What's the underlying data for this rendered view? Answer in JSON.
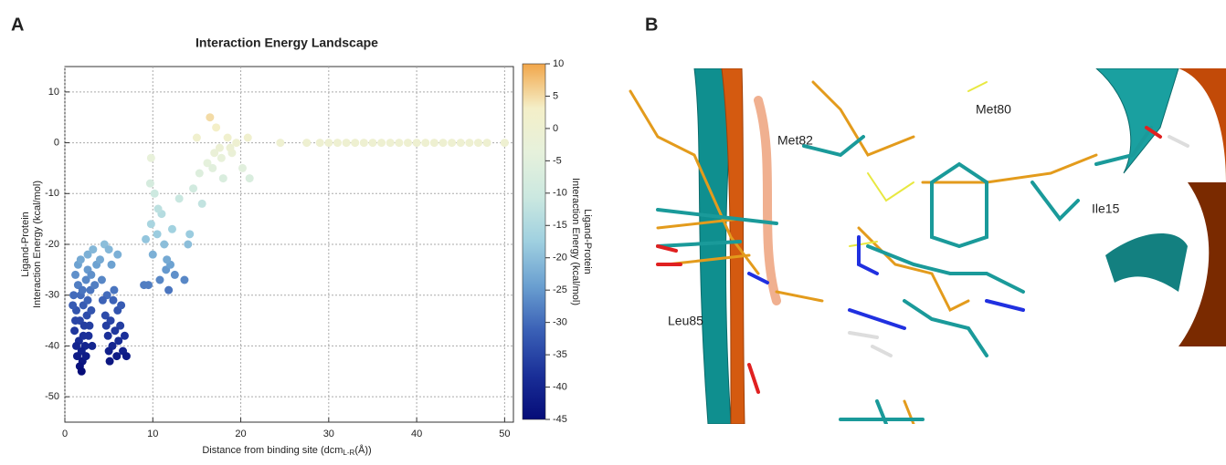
{
  "panel_labels": [
    "A",
    "B"
  ],
  "chart_data": {
    "type": "scatter",
    "title": "Interaction Energy Landscape",
    "x_label": "Distance from binding site (dcm",
    "x_label_sub": "L-R",
    "x_label_end": "(Å))",
    "y_label": [
      "Ligand-Protein",
      "Interaction Energy (kcal/mol)"
    ],
    "x": [
      1.2,
      1.5,
      1.8,
      2.1,
      1.3,
      2.5,
      1.7,
      2.2,
      1.1,
      2.7,
      1.6,
      2.3,
      1.9,
      1.4,
      2.0,
      1.7,
      1.9,
      2.6,
      1.0,
      2.9,
      1.5,
      2.4,
      3.0,
      2.8,
      1.2,
      2.1,
      1.8,
      2.6,
      0.9,
      3.1,
      2.4,
      1.3,
      2.0,
      2.6,
      3.2,
      3.6,
      3.0,
      4.0,
      3.4,
      4.2,
      4.5,
      5.0,
      5.3,
      4.8,
      5.5,
      6.0,
      4.6,
      5.2,
      6.3,
      5.7,
      4.9,
      6.1,
      5.4,
      6.6,
      5.9,
      7.0,
      5.1,
      6.4,
      4.7,
      6.8,
      5.6,
      6.0,
      4.3,
      5.0,
      9.0,
      9.5,
      10.0,
      9.8,
      10.5,
      10.2,
      9.7,
      11.0,
      11.3,
      11.5,
      12.0,
      12.5,
      11.8,
      10.8,
      12.2,
      9.2,
      13.6,
      13.0,
      14.2,
      14.0,
      9.8,
      10.6,
      11.6,
      14.6,
      15.3,
      15.0,
      16.5,
      17.2,
      17.6,
      18.5,
      19.0,
      19.5,
      20.2,
      21.0,
      16.2,
      17.8,
      18.0,
      16.8,
      20.8,
      18.8,
      15.6,
      17.0,
      24.5,
      27.5,
      29,
      30,
      31,
      32,
      33,
      34,
      35,
      36,
      37,
      38,
      39,
      40,
      41,
      42,
      43,
      44,
      45,
      46,
      47,
      48,
      50
    ],
    "y": [
      -26,
      -28,
      -30,
      -32,
      -33,
      -34,
      -35,
      -36,
      -37,
      -38,
      -39,
      -40,
      -41,
      -42,
      -43,
      -44,
      -45,
      -31,
      -30,
      -29,
      -24,
      -27,
      -33,
      -36,
      -35,
      -38,
      -23,
      -25,
      -32,
      -40,
      -42,
      -40,
      -29,
      -22,
      -21,
      -24,
      -26,
      -23,
      -28,
      -27,
      -20,
      -21,
      -24,
      -30,
      -31,
      -33,
      -34,
      -35,
      -36,
      -37,
      -38,
      -39,
      -40,
      -41,
      -42,
      -42,
      -43,
      -32,
      -36,
      -38,
      -29,
      -22,
      -31,
      -41,
      -28,
      -28,
      -22,
      -16,
      -18,
      -10,
      -8,
      -14,
      -20,
      -25,
      -24,
      -26,
      -29,
      -27,
      -17,
      -19,
      -27,
      -11,
      -18,
      -20,
      -3,
      -13,
      -23,
      -9,
      -6,
      1,
      5,
      3,
      -1,
      1,
      -2,
      0,
      -5,
      -7,
      -4,
      -3,
      -7,
      -5,
      1,
      -1,
      -12,
      -2,
      0,
      0,
      0,
      0,
      0,
      0,
      0,
      0,
      0,
      0,
      0,
      0,
      0,
      0,
      0,
      0,
      0,
      0,
      0,
      0,
      0,
      0,
      0
    ],
    "xlim": [
      0,
      51
    ],
    "ylim": [
      -55,
      15
    ],
    "xticks": [
      0,
      10,
      20,
      30,
      40,
      50
    ],
    "yticks": [
      -50,
      -40,
      -30,
      -20,
      -10,
      0,
      10
    ],
    "grid": true,
    "colorbar": {
      "label": [
        "Ligand-Protein",
        "Interaction Energy (kcal/mol)"
      ],
      "lim": [
        -45,
        10
      ],
      "ticks": [
        -45,
        -40,
        -35,
        -30,
        -25,
        -20,
        -15,
        -10,
        -5,
        0,
        5,
        10
      ],
      "colormap": [
        "#050c78",
        "#1a2f98",
        "#3a60b6",
        "#6a9fd0",
        "#9fd0e0",
        "#cbe8e0",
        "#e6f1dc",
        "#f4efc8",
        "#f2a64a"
      ]
    }
  },
  "structure_labels": [
    "Met82",
    "Met80",
    "Ile15",
    "Leu85"
  ]
}
